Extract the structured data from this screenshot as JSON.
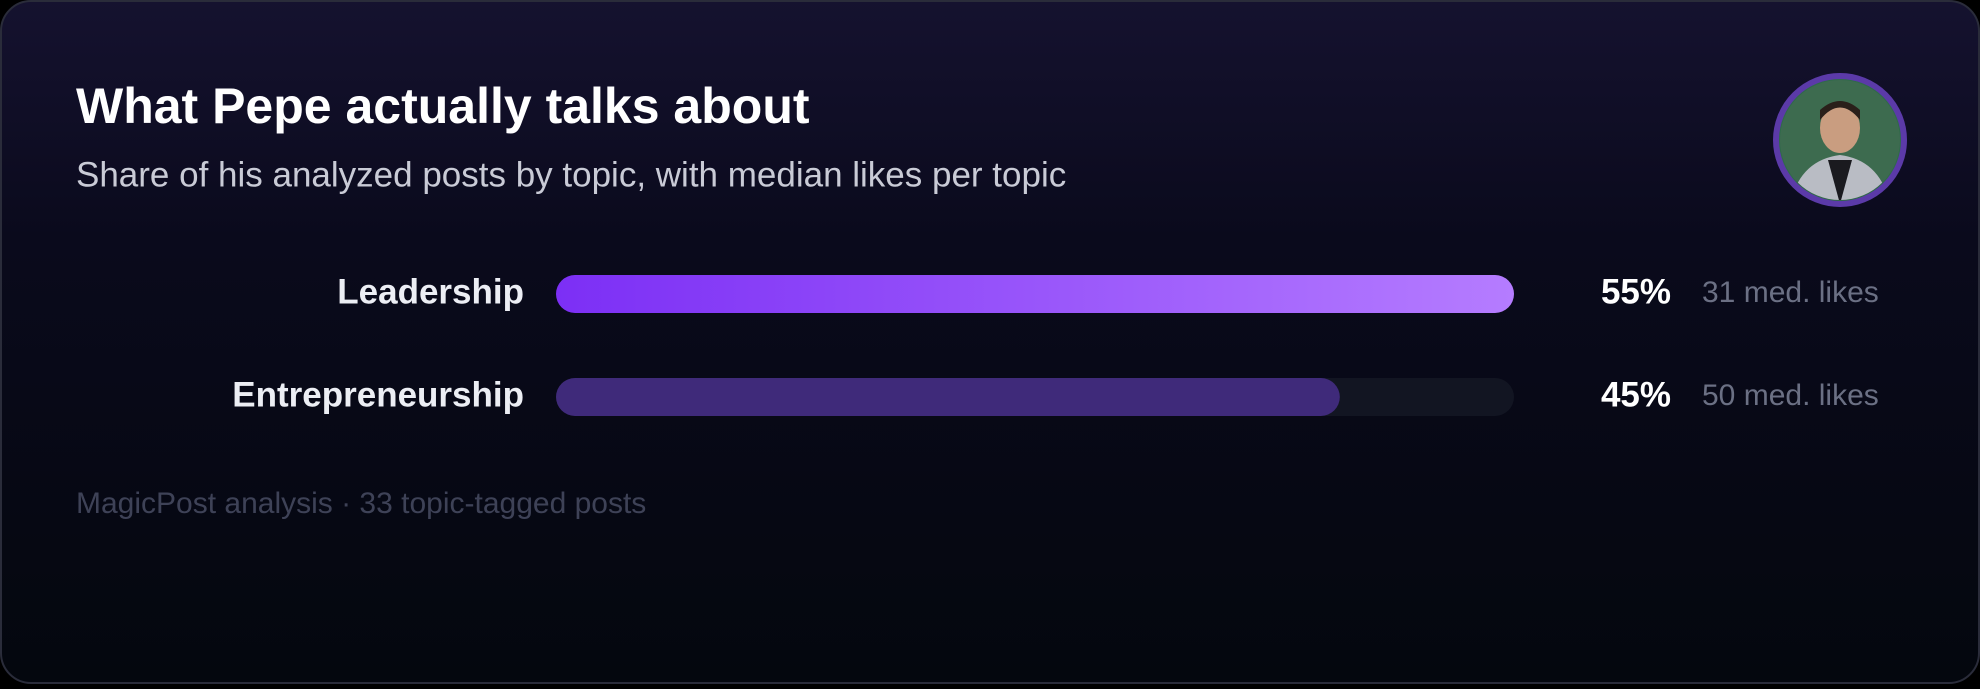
{
  "chart_data": {
    "type": "hbar",
    "title": "What Pepe actually talks about",
    "subtitle": "Share of his analyzed posts by topic, with median likes per topic",
    "categories": [
      "Leadership",
      "Entrepreneurship"
    ],
    "values": [
      55,
      45
    ],
    "value_labels": [
      "55%",
      "45%"
    ],
    "likes_labels": [
      "31 med. likes",
      "50 med. likes"
    ],
    "colors": [
      "#7c2ff5",
      "#3f2a7a"
    ],
    "highlight_gradient": [
      "#7c2ff5",
      "#b57cff"
    ],
    "xlim": [
      0,
      55
    ],
    "footer": "MagicPost analysis · 33 topic-tagged posts"
  }
}
